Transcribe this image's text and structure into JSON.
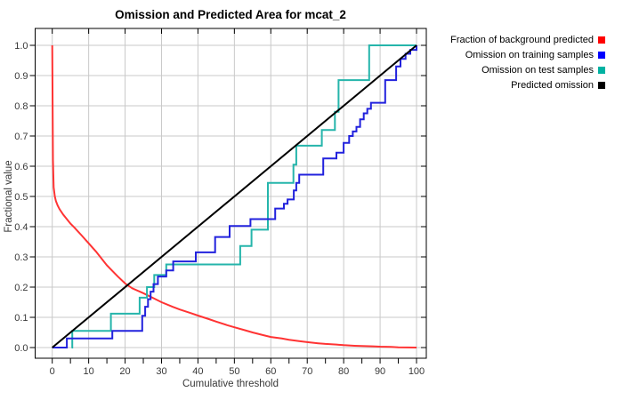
{
  "chart_data": {
    "type": "line",
    "title": "Omission and Predicted Area for mcat_2",
    "xlabel": "Cumulative threshold",
    "ylabel": "Fractional value",
    "xlim": [
      0,
      100
    ],
    "ylim": [
      0.0,
      1.0
    ],
    "x_ticks": [
      0,
      10,
      20,
      30,
      40,
      50,
      60,
      70,
      80,
      90,
      100
    ],
    "x_minor_step": 5,
    "y_ticks": [
      0.0,
      0.1,
      0.2,
      0.3,
      0.4,
      0.5,
      0.6,
      0.7,
      0.8,
      0.9,
      1.0
    ],
    "y_tick_labels": [
      "0.0",
      "0.1",
      "0.2",
      "0.3",
      "0.4",
      "0.5",
      "0.6",
      "0.7",
      "0.8",
      "0.9",
      "1.0"
    ],
    "grid": true,
    "legend_position": "outside-top-right",
    "colors": {
      "background": "#ffffff",
      "grid": "#c9c9c9",
      "axis": "#000000",
      "tick_text": "#383838",
      "title_text": "#000000"
    },
    "series": [
      {
        "name": "Fraction of background predicted",
        "legend_color": "#ff0000",
        "color": "#ff3333",
        "style": "curve",
        "points": [
          [
            0,
            1.0
          ],
          [
            0.2,
            0.62
          ],
          [
            0.4,
            0.53
          ],
          [
            0.7,
            0.5
          ],
          [
            1,
            0.485
          ],
          [
            1.5,
            0.47
          ],
          [
            2,
            0.458
          ],
          [
            3,
            0.44
          ],
          [
            4,
            0.425
          ],
          [
            5,
            0.41
          ],
          [
            6,
            0.398
          ],
          [
            8,
            0.372
          ],
          [
            10,
            0.345
          ],
          [
            12,
            0.318
          ],
          [
            15,
            0.272
          ],
          [
            18,
            0.235
          ],
          [
            20,
            0.212
          ],
          [
            22,
            0.196
          ],
          [
            25,
            0.18
          ],
          [
            28,
            0.162
          ],
          [
            30,
            0.15
          ],
          [
            33,
            0.135
          ],
          [
            35,
            0.126
          ],
          [
            38,
            0.114
          ],
          [
            40,
            0.106
          ],
          [
            43,
            0.094
          ],
          [
            45,
            0.086
          ],
          [
            48,
            0.074
          ],
          [
            50,
            0.067
          ],
          [
            53,
            0.057
          ],
          [
            55,
            0.05
          ],
          [
            58,
            0.041
          ],
          [
            60,
            0.035
          ],
          [
            63,
            0.03
          ],
          [
            65,
            0.026
          ],
          [
            68,
            0.021
          ],
          [
            70,
            0.018
          ],
          [
            73,
            0.014
          ],
          [
            75,
            0.012
          ],
          [
            78,
            0.01
          ],
          [
            80,
            0.008
          ],
          [
            83,
            0.006
          ],
          [
            85,
            0.005
          ],
          [
            88,
            0.004
          ],
          [
            90,
            0.003
          ],
          [
            93,
            0.002
          ],
          [
            95,
            0.001
          ],
          [
            100,
            0.0
          ]
        ]
      },
      {
        "name": "Omission on training samples",
        "legend_color": "#0000ff",
        "color": "#2222dd",
        "style": "step",
        "points": [
          [
            0,
            0
          ],
          [
            4,
            0.03
          ],
          [
            16.5,
            0.055
          ],
          [
            24.7,
            0.105
          ],
          [
            25.5,
            0.135
          ],
          [
            26.3,
            0.16
          ],
          [
            27,
            0.185
          ],
          [
            27.8,
            0.21
          ],
          [
            29,
            0.235
          ],
          [
            31.3,
            0.255
          ],
          [
            33.2,
            0.285
          ],
          [
            39.4,
            0.315
          ],
          [
            44.7,
            0.366
          ],
          [
            48.7,
            0.402
          ],
          [
            54.4,
            0.425
          ],
          [
            61.2,
            0.46
          ],
          [
            63.6,
            0.476
          ],
          [
            64.6,
            0.49
          ],
          [
            66.3,
            0.52
          ],
          [
            67,
            0.545
          ],
          [
            67.8,
            0.572
          ],
          [
            74.4,
            0.626
          ],
          [
            78,
            0.645
          ],
          [
            80,
            0.677
          ],
          [
            81.5,
            0.7
          ],
          [
            82.5,
            0.715
          ],
          [
            83.5,
            0.73
          ],
          [
            84.5,
            0.755
          ],
          [
            85.5,
            0.775
          ],
          [
            86.5,
            0.79
          ],
          [
            87.5,
            0.81
          ],
          [
            91.4,
            0.885
          ],
          [
            94.4,
            0.93
          ],
          [
            95.6,
            0.955
          ],
          [
            97,
            0.972
          ],
          [
            98.3,
            0.985
          ],
          [
            100,
            1.0
          ]
        ]
      },
      {
        "name": "Omission on test samples",
        "legend_color": "#00b2a2",
        "color": "#25b5ab",
        "style": "step",
        "points": [
          [
            5.3,
            0
          ],
          [
            5.5,
            0.055
          ],
          [
            16.1,
            0.112
          ],
          [
            24,
            0.165
          ],
          [
            26,
            0.2
          ],
          [
            28,
            0.24
          ],
          [
            31.3,
            0.275
          ],
          [
            51.6,
            0.336
          ],
          [
            54.7,
            0.39
          ],
          [
            59.2,
            0.545
          ],
          [
            66.2,
            0.605
          ],
          [
            67,
            0.668
          ],
          [
            74,
            0.72
          ],
          [
            77.6,
            0.78
          ],
          [
            78.6,
            0.885
          ],
          [
            87,
            1.0
          ],
          [
            100,
            1.0
          ]
        ]
      },
      {
        "name": "Predicted omission",
        "legend_color": "#000000",
        "color": "#000000",
        "style": "line",
        "points": [
          [
            0,
            0
          ],
          [
            100,
            1.0
          ]
        ]
      }
    ]
  }
}
